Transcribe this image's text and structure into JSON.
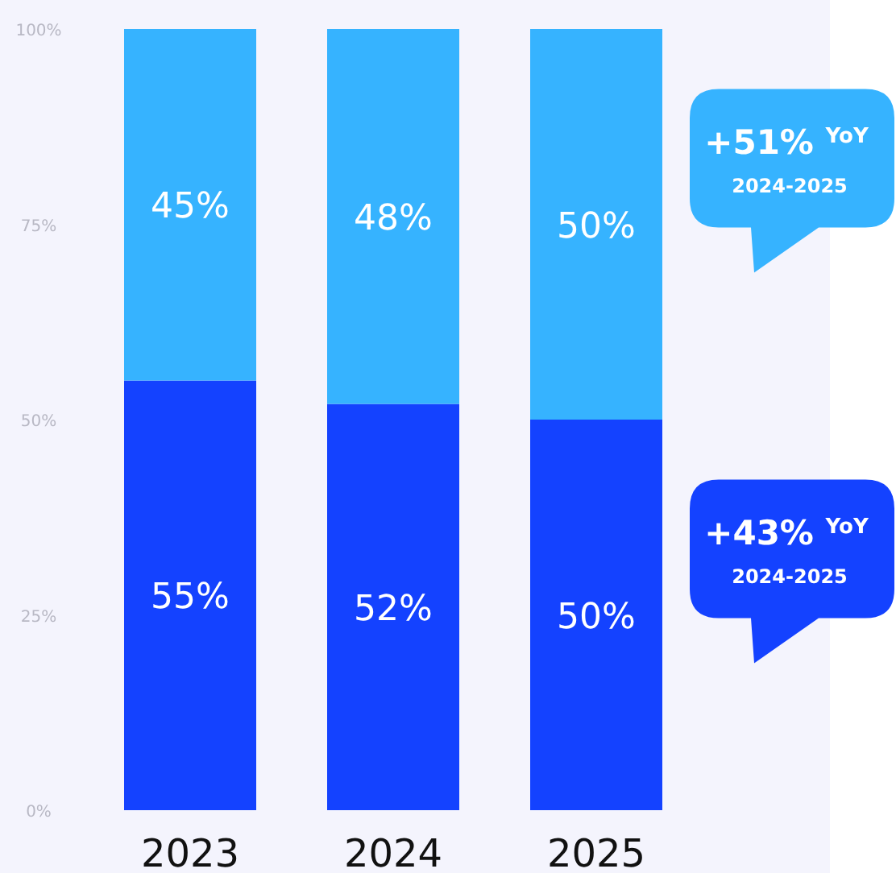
{
  "chart_data": {
    "type": "bar",
    "stacked": true,
    "categories": [
      "2023",
      "2024",
      "2025"
    ],
    "series": [
      {
        "color": "#1442ff",
        "values": [
          55,
          52,
          50
        ],
        "value_labels": [
          "55%",
          "52%",
          "50%"
        ]
      },
      {
        "color": "#36b3ff",
        "values": [
          45,
          48,
          50
        ],
        "value_labels": [
          "45%",
          "48%",
          "50%"
        ]
      }
    ],
    "ylim": [
      0,
      100
    ],
    "yticks": [
      {
        "value": 0,
        "label": "0%"
      },
      {
        "value": 25,
        "label": "25%"
      },
      {
        "value": 50,
        "label": "50%"
      },
      {
        "value": 75,
        "label": "75%"
      },
      {
        "value": 100,
        "label": "100%"
      }
    ],
    "grid": false,
    "annotations": [
      "+51% $^{YoY}$",
      "2024-2025",
      "+43% $^{YoY}$",
      "2024-2025"
    ]
  }
}
